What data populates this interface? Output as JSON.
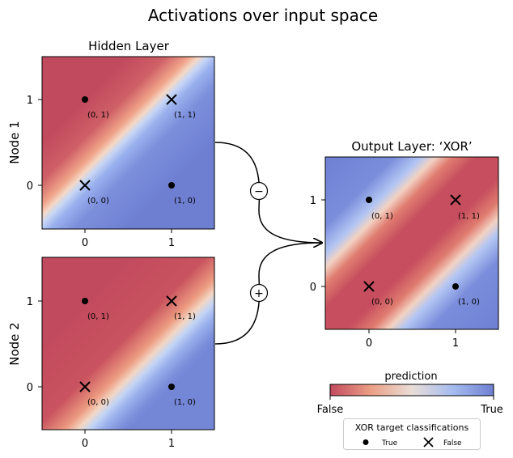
{
  "title": "Activations over input space",
  "panels": {
    "node1": {
      "title": "Hidden Layer",
      "ylabel": "Node 1"
    },
    "node2": {
      "ylabel": "Node 2"
    },
    "output": {
      "title": "Output Layer: ‘XOR’"
    }
  },
  "points": {
    "p00": "(0, 0)",
    "p01": "(0, 1)",
    "p10": "(1, 0)",
    "p11": "(1, 1)"
  },
  "ticks": {
    "zero": "0",
    "one": "1"
  },
  "connections": {
    "node1_sign": "−",
    "node2_sign": "+"
  },
  "colorbar": {
    "label": "prediction",
    "min_label": "False",
    "max_label": "True",
    "low_color": "#c24a5e",
    "mid_color": "#eedcd4",
    "high_color": "#7283d4"
  },
  "legend": {
    "title": "XOR target classifications",
    "true_label": "True",
    "false_label": "False"
  }
}
